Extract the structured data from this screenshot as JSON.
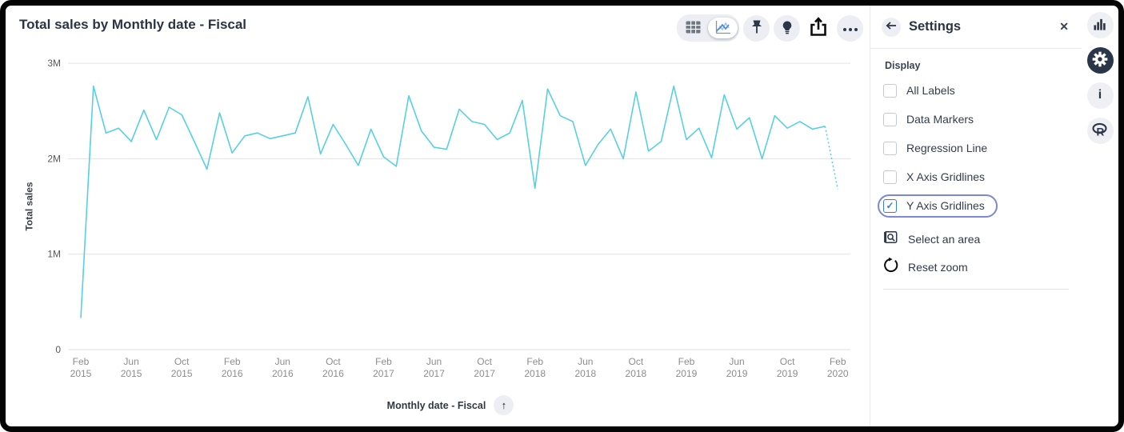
{
  "chart": {
    "title": "Total sales by Monthly date - Fiscal",
    "y_axis_title": "Total sales",
    "x_axis_title": "Monthly date - Fiscal",
    "sort_glyph": "↑"
  },
  "toolbar": {
    "buttons": [
      {
        "icon": "table-view-icon",
        "active": false
      },
      {
        "icon": "chart-view-icon",
        "active": true
      },
      {
        "icon": "pin-icon"
      },
      {
        "icon": "lightbulb-icon"
      },
      {
        "icon": "export-icon"
      },
      {
        "icon": "more-ellipsis-icon"
      }
    ]
  },
  "settings": {
    "title": "Settings",
    "back_icon": "arrow-left-icon",
    "close_glyph": "✕",
    "check_glyph": "✓",
    "section_label": "Display",
    "checkboxes": [
      {
        "label": "All Labels",
        "checked": false
      },
      {
        "label": "Data Markers",
        "checked": false
      },
      {
        "label": "Regression Line",
        "checked": false
      },
      {
        "label": "X Axis Gridlines",
        "checked": false
      },
      {
        "label": "Y Axis Gridlines",
        "checked": true,
        "focused": true
      }
    ],
    "actions": [
      {
        "label": "Select an area",
        "icon": "select-area-icon"
      },
      {
        "label": "Reset zoom",
        "icon": "reset-zoom-icon"
      }
    ]
  },
  "rail": {
    "icons": [
      "bar-chart-icon",
      "gear-icon",
      "info-icon",
      "r-logo-icon"
    ],
    "active_icon": "gear-icon",
    "info_glyph": "i",
    "r_glyph": "R"
  },
  "chart_data": {
    "type": "line",
    "title": "Total sales by Monthly date - Fiscal",
    "xlabel": "Monthly date - Fiscal",
    "ylabel": "Total sales",
    "ylim": [
      0,
      3000000
    ],
    "unit": "millions",
    "grid": "y-gridlines-only",
    "legend": "none",
    "line_color": "#56d0e2",
    "last_segment_style": "dotted",
    "x_tick_every": 4,
    "y_ticks": [
      {
        "label": "0",
        "value": 0
      },
      {
        "label": "1M",
        "value": 1
      },
      {
        "label": "2M",
        "value": 2
      },
      {
        "label": "3M",
        "value": 3
      }
    ],
    "x": [
      "Feb 2015",
      "Mar 2015",
      "Apr 2015",
      "May 2015",
      "Jun 2015",
      "Jul 2015",
      "Aug 2015",
      "Sep 2015",
      "Oct 2015",
      "Nov 2015",
      "Dec 2015",
      "Jan 2016",
      "Feb 2016",
      "Mar 2016",
      "Apr 2016",
      "May 2016",
      "Jun 2016",
      "Jul 2016",
      "Aug 2016",
      "Sep 2016",
      "Oct 2016",
      "Nov 2016",
      "Dec 2016",
      "Jan 2017",
      "Feb 2017",
      "Mar 2017",
      "Apr 2017",
      "May 2017",
      "Jun 2017",
      "Jul 2017",
      "Aug 2017",
      "Sep 2017",
      "Oct 2017",
      "Nov 2017",
      "Dec 2017",
      "Jan 2018",
      "Feb 2018",
      "Mar 2018",
      "Apr 2018",
      "May 2018",
      "Jun 2018",
      "Jul 2018",
      "Aug 2018",
      "Sep 2018",
      "Oct 2018",
      "Nov 2018",
      "Dec 2018",
      "Jan 2019",
      "Feb 2019",
      "Mar 2019",
      "Apr 2019",
      "May 2019",
      "Jun 2019",
      "Jul 2019",
      "Aug 2019",
      "Sep 2019",
      "Oct 2019",
      "Nov 2019",
      "Dec 2019",
      "Jan 2020",
      "Feb 2020"
    ],
    "values_millions": [
      0.33,
      2.76,
      2.27,
      2.32,
      2.18,
      2.51,
      2.2,
      2.54,
      2.46,
      2.18,
      1.89,
      2.48,
      2.06,
      2.24,
      2.27,
      2.21,
      2.24,
      2.27,
      2.65,
      2.05,
      2.36,
      2.15,
      1.93,
      2.31,
      2.02,
      1.92,
      2.66,
      2.29,
      2.12,
      2.1,
      2.52,
      2.39,
      2.36,
      2.2,
      2.27,
      2.61,
      1.69,
      2.73,
      2.45,
      2.39,
      1.93,
      2.15,
      2.31,
      2.0,
      2.7,
      2.08,
      2.18,
      2.76,
      2.2,
      2.32,
      2.01,
      2.67,
      2.31,
      2.43,
      2.0,
      2.45,
      2.32,
      2.39,
      2.31,
      2.34,
      1.68
    ]
  }
}
